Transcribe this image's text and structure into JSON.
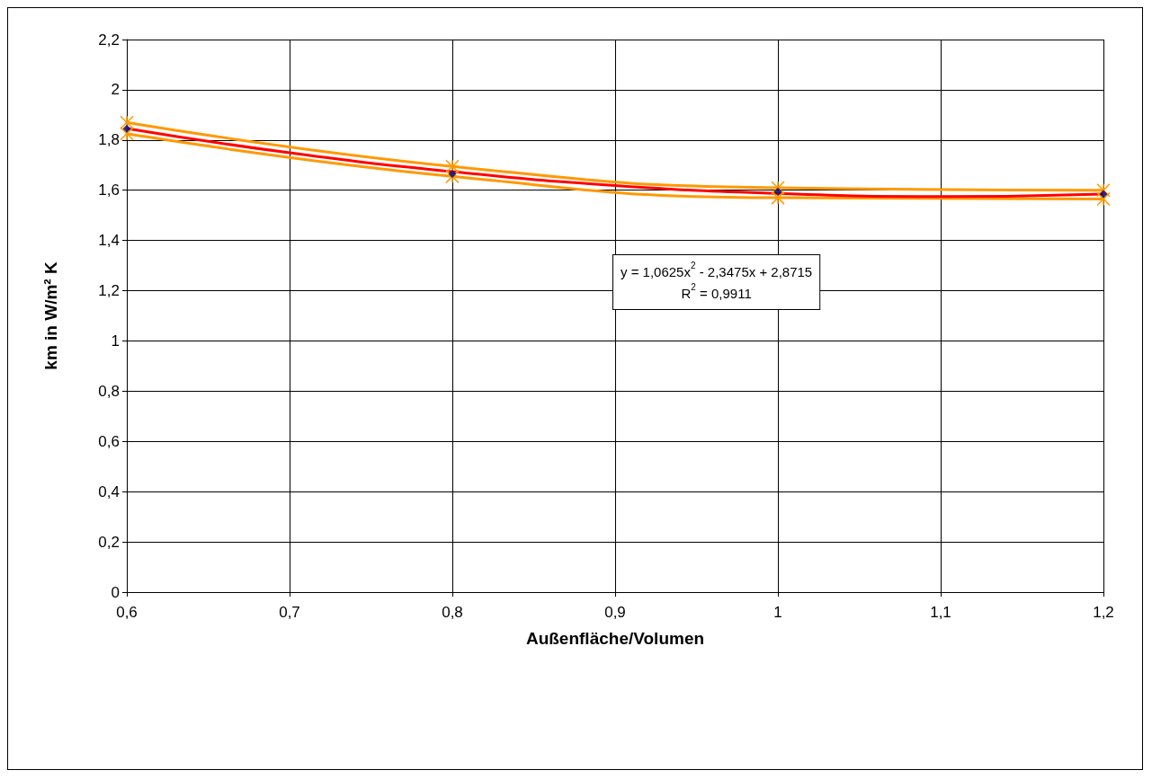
{
  "chart_data": {
    "type": "line",
    "xlabel": "Außenfläche/Volumen",
    "ylabel": "km in W/m² K",
    "x": [
      0.6,
      0.8,
      1.0,
      1.2
    ],
    "series": [
      {
        "color": "#ff9900",
        "values": [
          1.87,
          1.695,
          1.61,
          1.6
        ],
        "marker": "cross"
      },
      {
        "color": "#ff9900",
        "values": [
          1.825,
          1.655,
          1.57,
          1.565
        ],
        "marker": "cross"
      },
      {
        "type": "line",
        "color": "#ff0000",
        "x": [
          0.6,
          0.7,
          0.8,
          0.9,
          1.0,
          1.1,
          1.2
        ],
        "values": [
          1.846,
          1.749,
          1.674,
          1.619,
          1.587,
          1.575,
          1.585
        ],
        "marker": "none"
      },
      {
        "type": "scatter",
        "color": "#000080",
        "values": [
          1.845,
          1.665,
          1.595,
          1.585
        ],
        "marker": "diamond"
      }
    ],
    "annotations": [
      "y = 1,0625x$^{2}$ - 2,3475x + 2,8715\nR$^{2}$ = 0,9911"
    ],
    "xlim": [
      0.6,
      1.2
    ],
    "xticks": [
      {
        "value": 0.6,
        "label": "0,6"
      },
      {
        "value": 0.7,
        "label": "0,7"
      },
      {
        "value": 0.8,
        "label": "0,8"
      },
      {
        "value": 0.9,
        "label": "0,9"
      },
      {
        "value": 1,
        "label": "1"
      },
      {
        "value": 1.1,
        "label": "1,1"
      },
      {
        "value": 1.2,
        "label": "1,2"
      }
    ],
    "ylim": [
      0,
      2.2
    ],
    "yticks": [
      0,
      {
        "value": 0.2,
        "label": "0,2"
      },
      {
        "value": 0.4,
        "label": "0,4"
      },
      {
        "value": 0.6,
        "label": "0,6"
      },
      {
        "value": 0.8,
        "label": "0,8"
      },
      1,
      {
        "value": 1.2,
        "label": "1,2"
      },
      {
        "value": 1.4,
        "label": "1,4"
      },
      {
        "value": 1.6,
        "label": "1,6"
      },
      {
        "value": 1.8,
        "label": "1,8"
      },
      2,
      {
        "value": 2.2,
        "label": "2,2"
      }
    ],
    "grid": true,
    "line_style": "solid"
  }
}
